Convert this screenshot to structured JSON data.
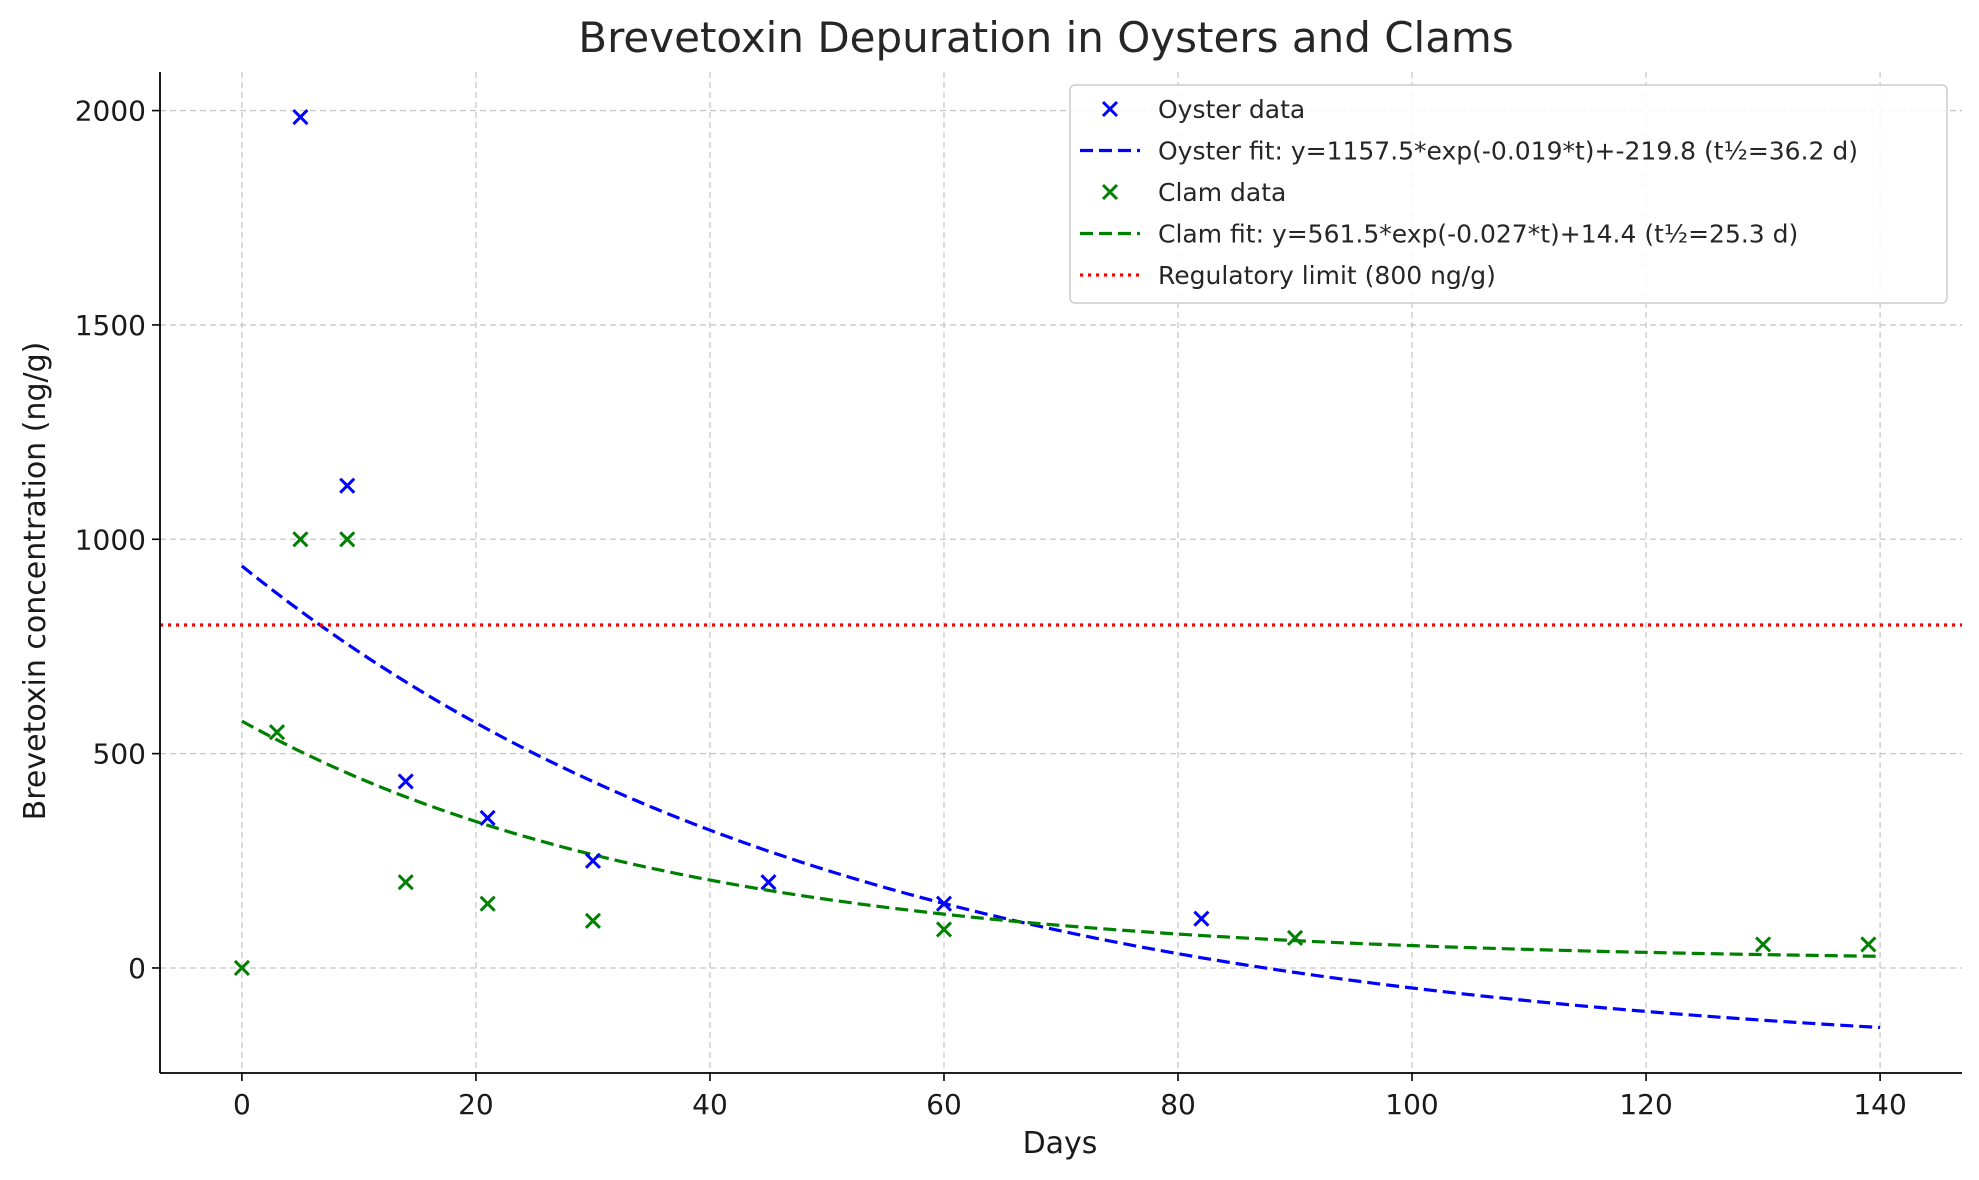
{
  "chart_data": {
    "type": "scatter",
    "title": "Brevetoxin Depuration in Oysters and Clams",
    "xlabel": "Days",
    "ylabel": "Brevetoxin concentration (ng/g)",
    "xlim": [
      -7,
      147
    ],
    "ylim": [
      -245,
      2090
    ],
    "xticks": [
      0,
      20,
      40,
      60,
      80,
      100,
      120,
      140
    ],
    "yticks": [
      0,
      500,
      1000,
      1500,
      2000
    ],
    "grid": true,
    "legend_position": "top-right",
    "series": [
      {
        "name": "Oyster data",
        "kind": "scatter",
        "marker": "x",
        "color": "#0000ff",
        "x": [
          5,
          9,
          14,
          21,
          30,
          45,
          60,
          82
        ],
        "y": [
          1985,
          1125,
          435,
          350,
          250,
          200,
          150,
          115
        ]
      },
      {
        "name": "Oyster fit: y=1157.5*exp(-0.019*t)+-219.8 (t½=36.2 d)",
        "kind": "line",
        "style": "dashed",
        "color": "#0000ff",
        "model": {
          "a": 1157.5,
          "k": 0.019,
          "c": -219.8
        },
        "x_range": [
          0,
          140
        ]
      },
      {
        "name": "Clam data",
        "kind": "scatter",
        "marker": "x",
        "color": "#008000",
        "x": [
          0,
          3,
          5,
          9,
          14,
          21,
          30,
          60,
          90,
          130,
          139
        ],
        "y": [
          0,
          550,
          1000,
          1000,
          200,
          150,
          110,
          90,
          70,
          55,
          55
        ]
      },
      {
        "name": "Clam fit: y=561.5*exp(-0.027*t)+14.4 (t½=25.3 d)",
        "kind": "line",
        "style": "dashed",
        "color": "#008000",
        "model": {
          "a": 561.5,
          "k": 0.027,
          "c": 14.4
        },
        "x_range": [
          0,
          140
        ]
      },
      {
        "name": "Regulatory limit (800 ng/g)",
        "kind": "hline",
        "style": "dotted",
        "color": "#ff0000",
        "y": 800
      }
    ]
  }
}
